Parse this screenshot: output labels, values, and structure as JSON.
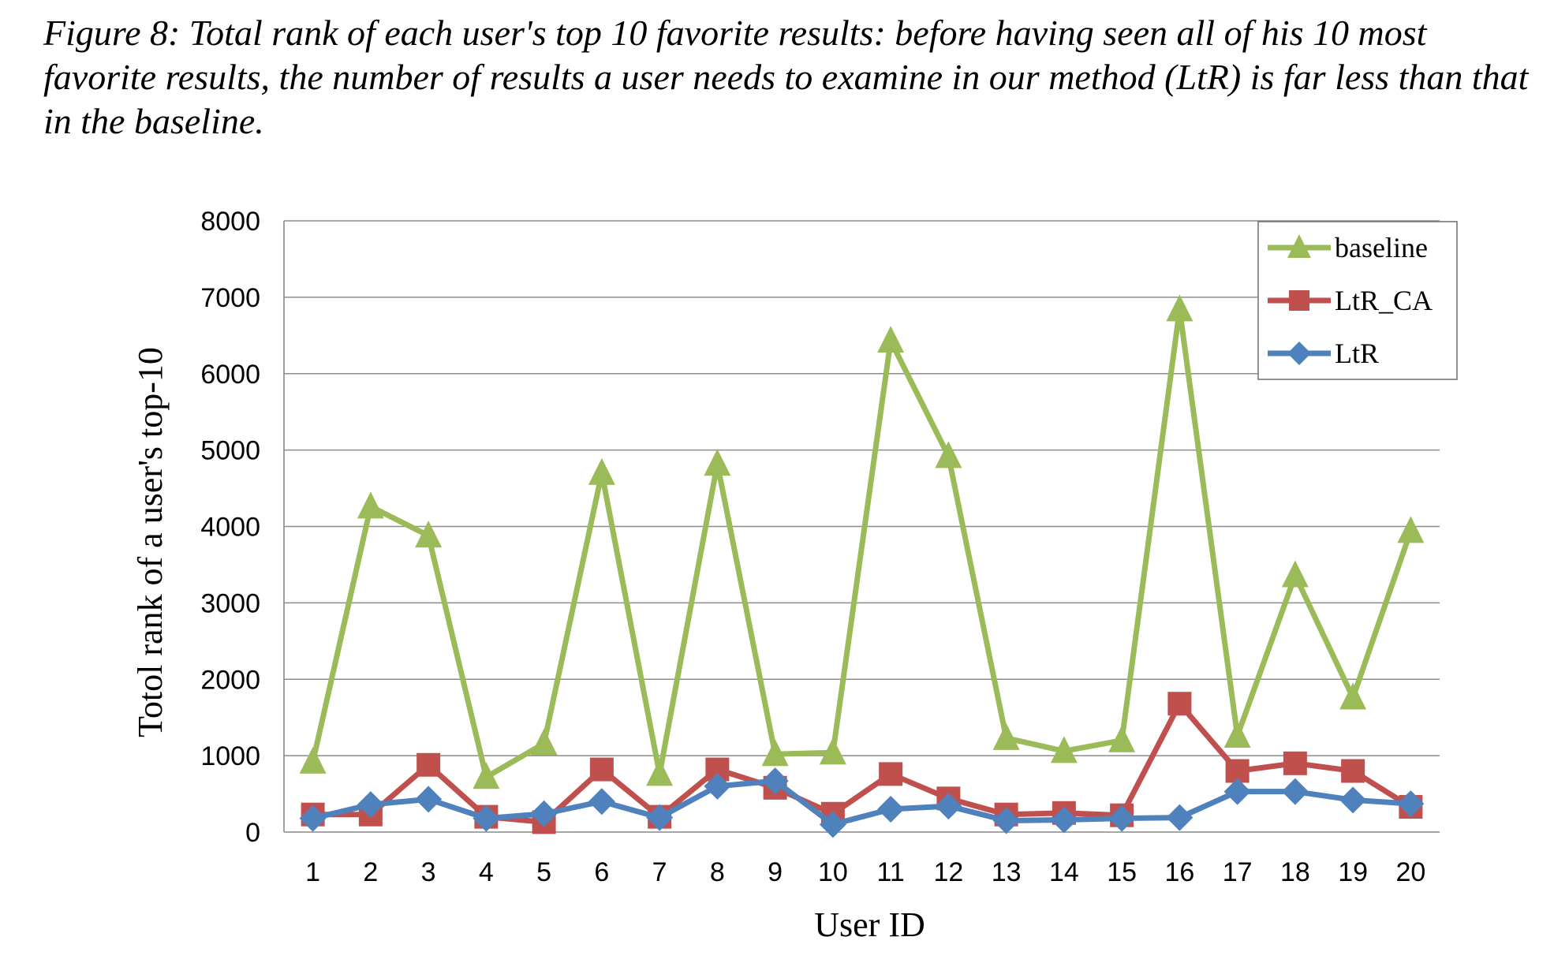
{
  "caption": "Figure  8: Total rank of each user's top 10 favorite results: before having seen all of his 10 most favorite results, the number of results a user needs to examine in our method (LtR) is far less than that in the baseline.",
  "chart_data": {
    "type": "line",
    "title": "",
    "xlabel": "User ID",
    "ylabel": "Totol rank of a user's top-10",
    "ylim": [
      0,
      8000
    ],
    "yticks": [
      0,
      1000,
      2000,
      3000,
      4000,
      5000,
      6000,
      7000,
      8000
    ],
    "categories": [
      "1",
      "2",
      "3",
      "4",
      "5",
      "6",
      "7",
      "8",
      "9",
      "10",
      "11",
      "12",
      "13",
      "14",
      "15",
      "16",
      "17",
      "18",
      "19",
      "20"
    ],
    "grid": "horizontal",
    "legend_position": "top-right",
    "series": [
      {
        "name": "baseline",
        "color": "#9bbb59",
        "marker": "triangle",
        "values": [
          920,
          4260,
          3880,
          720,
          1160,
          4700,
          760,
          4820,
          1020,
          1040,
          6430,
          4920,
          1230,
          1060,
          1200,
          6840,
          1260,
          3360,
          1760,
          3940
        ]
      },
      {
        "name": "LtR_CA",
        "color": "#c0504d",
        "marker": "square",
        "values": [
          230,
          230,
          880,
          200,
          130,
          820,
          200,
          820,
          580,
          240,
          760,
          440,
          230,
          250,
          220,
          1680,
          800,
          900,
          800,
          330
        ]
      },
      {
        "name": "LtR",
        "color": "#4f81bd",
        "marker": "diamond",
        "values": [
          180,
          360,
          430,
          180,
          240,
          400,
          190,
          600,
          670,
          100,
          300,
          340,
          150,
          160,
          180,
          190,
          530,
          530,
          420,
          370
        ]
      }
    ]
  }
}
